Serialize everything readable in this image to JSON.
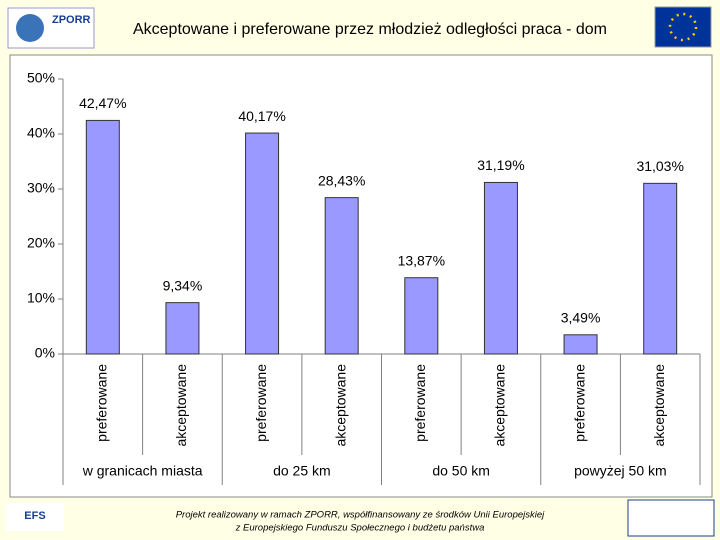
{
  "header": {
    "title": "Akceptowane i preferowane przez młodzież odległości praca - dom",
    "logo_left": "ZPORR"
  },
  "chart_data": {
    "type": "bar",
    "categories": [
      "preferowane",
      "akceptowane",
      "preferowane",
      "akceptowane",
      "preferowane",
      "akceptowane",
      "preferowane",
      "akceptowane"
    ],
    "groups": [
      "w granicach miasta",
      "do 25 km",
      "do 50 km",
      "powyżej 50 km"
    ],
    "values": [
      42.47,
      9.34,
      40.17,
      28.43,
      13.87,
      31.19,
      3.49,
      31.03
    ],
    "value_labels": [
      "42,47%",
      "9,34%",
      "40,17%",
      "28,43%",
      "13,87%",
      "31,19%",
      "3,49%",
      "31,03%"
    ],
    "color": "#9999ff",
    "ylim": [
      0,
      50
    ],
    "yticks": [
      {
        "value": 0,
        "label": "0%"
      },
      {
        "value": 10,
        "label": "10%"
      },
      {
        "value": 20,
        "label": "20%"
      },
      {
        "value": 30,
        "label": "30%"
      },
      {
        "value": 40,
        "label": "40%"
      },
      {
        "value": 50,
        "label": "50%"
      }
    ],
    "grid": false
  },
  "footer": {
    "lines": [
      "Projekt realizowany w ramach ZPORR, współfinansowany ze środków Unii Europejskiej",
      "z Europejskiego Funduszu Społecznego i budżetu państwa"
    ],
    "logo_left": "EFS"
  }
}
